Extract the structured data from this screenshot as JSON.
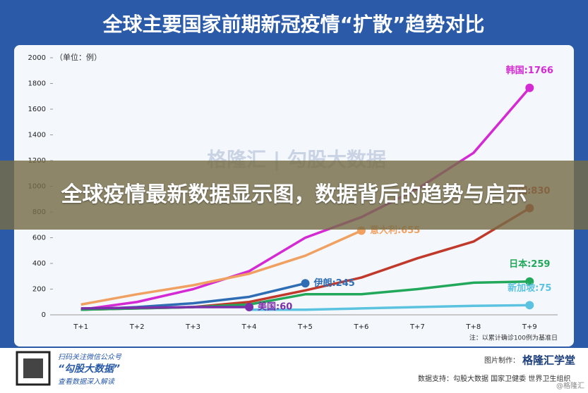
{
  "chart_data": {
    "type": "line",
    "title": "全球主要国家前期新冠疫情“扩散”趋势对比",
    "y_label": "（单位：例）",
    "note": "注：以累计确诊100例为基准日",
    "watermark": "格隆汇 | 勾股大数据",
    "categories": [
      "T+1",
      "T+2",
      "T+3",
      "T+4",
      "T+5",
      "T+6",
      "T+7",
      "T+8",
      "T+9"
    ],
    "ylim": [
      0,
      2000
    ],
    "yticks": [
      0,
      200,
      400,
      600,
      800,
      1000,
      1200,
      1400,
      1600,
      1800,
      2000
    ],
    "series": [
      {
        "name": "韩国",
        "color": "#d42ad4",
        "values": [
          40,
          100,
          200,
          340,
          600,
          760,
          980,
          1260,
          1766
        ],
        "value_labels": [
          null,
          null,
          null,
          null,
          null,
          null,
          null,
          null,
          "韩国:1766"
        ]
      },
      {
        "name": "中国",
        "color": "#c0392b",
        "values": [
          40,
          50,
          60,
          100,
          190,
          290,
          440,
          570,
          830
        ],
        "value_labels": [
          null,
          null,
          null,
          null,
          null,
          null,
          null,
          null,
          "中国:830"
        ]
      },
      {
        "name": "意大利",
        "color": "#f0a060",
        "values": [
          80,
          160,
          230,
          320,
          460,
          655,
          null,
          null,
          null
        ],
        "value_labels": [
          null,
          null,
          null,
          null,
          null,
          "意大利:655",
          null,
          null,
          null
        ]
      },
      {
        "name": "伊朗",
        "color": "#2e6db4",
        "values": [
          40,
          60,
          90,
          140,
          245,
          null,
          null,
          null,
          null
        ],
        "value_labels": [
          null,
          null,
          null,
          null,
          "伊朗:245",
          null,
          null,
          null,
          null
        ]
      },
      {
        "name": "日本",
        "color": "#22a85a",
        "values": [
          40,
          50,
          60,
          80,
          160,
          160,
          200,
          250,
          259
        ],
        "value_labels": [
          null,
          null,
          null,
          null,
          null,
          null,
          null,
          null,
          "日本:259"
        ]
      },
      {
        "name": "新加坡",
        "color": "#5bc3e0",
        "values": [
          null,
          null,
          null,
          40,
          40,
          50,
          60,
          70,
          75
        ],
        "value_labels": [
          null,
          null,
          null,
          null,
          null,
          null,
          null,
          null,
          "新加坡:75"
        ]
      },
      {
        "name": "美国",
        "color": "#7b2fa8",
        "values": [
          50,
          55,
          60,
          60,
          null,
          null,
          null,
          null,
          null
        ],
        "value_labels": [
          null,
          null,
          null,
          "美国:60",
          null,
          null,
          null,
          null,
          null
        ]
      }
    ]
  },
  "banner": "全球疫情最新数据显示图，数据背后的趋势与启示",
  "footer": {
    "qr_line1": "扫码关注微信公众号",
    "qr_line2": "“勾股大数据”",
    "qr_line3": "查看数据深入解读",
    "maker_label": "图片制作：",
    "maker": "格隆汇学堂",
    "source": "数据支持：勾股大数据  国家卫健委  世界卫生组织",
    "credit": "@格隆汇"
  }
}
